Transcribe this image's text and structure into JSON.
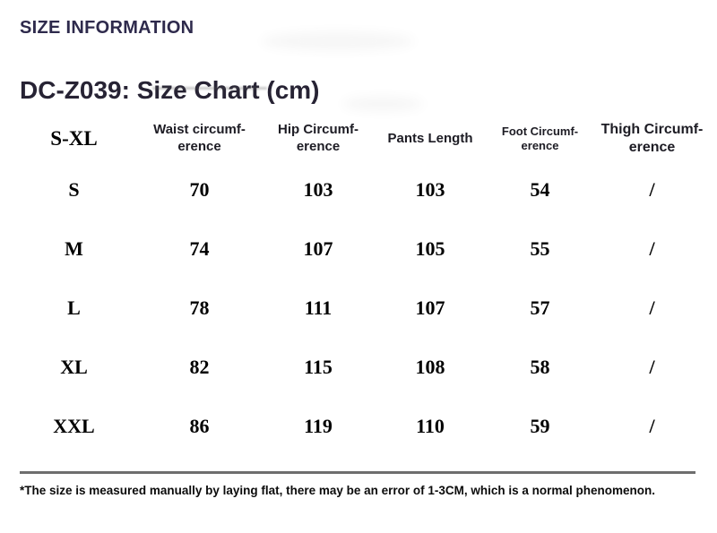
{
  "page": {
    "section_title": "SIZE INFORMATION",
    "chart_title": "DC-Z039: Size Chart (cm)"
  },
  "table": {
    "headers": [
      {
        "label": "S-XL"
      },
      {
        "label": "Waist circumf-\nerence"
      },
      {
        "label": "Hip Circumf-\nerence"
      },
      {
        "label": "Pants Length"
      },
      {
        "label": "Foot Circumf-\nerence"
      },
      {
        "label": "Thigh Circumf-\nerence"
      }
    ],
    "rows": [
      {
        "size": "S",
        "values": [
          "70",
          "103",
          "103",
          "54",
          "/"
        ]
      },
      {
        "size": "M",
        "values": [
          "74",
          "107",
          "105",
          "55",
          "/"
        ]
      },
      {
        "size": "L",
        "values": [
          "78",
          "111",
          "107",
          "57",
          "/"
        ]
      },
      {
        "size": "XL",
        "values": [
          "82",
          "115",
          "108",
          "58",
          "/"
        ]
      },
      {
        "size": "XXL",
        "values": [
          "86",
          "119",
          "110",
          "59",
          "/"
        ]
      }
    ]
  },
  "footer": {
    "note": "*The size is measured manually by laying flat, there may be an error of 1-3CM, which is a normal phenomenon."
  },
  "colors": {
    "section_title": "#2e2a4c",
    "chart_title": "#272334",
    "header_text": "#1d1c24",
    "cell_text": "#000000",
    "divider": "#6e6e6e"
  }
}
